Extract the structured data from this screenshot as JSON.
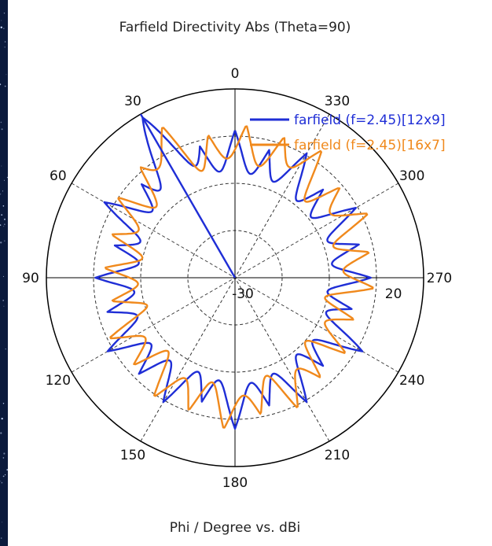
{
  "chart_data": {
    "type": "polar",
    "title": "Farfield Directivity Abs (Theta=90)",
    "xlabel": "Phi / Degree vs. dBi",
    "angle_ticks": [
      "0",
      "30",
      "60",
      "90",
      "120",
      "150",
      "180",
      "210",
      "240",
      "270",
      "300",
      "330"
    ],
    "radial_ticks": [
      "-30",
      "20"
    ],
    "rlim": [
      -30,
      20
    ],
    "angle_direction": "counterclockwise",
    "grid": true,
    "legend_position": "top-right",
    "main_lobe_direction_deg": 30,
    "series": [
      {
        "name": "farfield (f=2.45)[12x9]",
        "color": "#1f2ed6",
        "phi": [
          0,
          15,
          30,
          45,
          60,
          75,
          90,
          105,
          120,
          135,
          150,
          165,
          180,
          195,
          210,
          225,
          240,
          255,
          270,
          285,
          300,
          315,
          330,
          345
        ],
        "dbi": [
          9,
          6,
          19,
          5,
          10,
          3,
          7,
          5,
          9,
          6,
          8,
          4,
          10,
          5,
          8,
          3,
          9,
          2,
          6,
          4,
          7,
          3,
          8,
          5
        ]
      },
      {
        "name": "farfield (f=2.45)[16x7]",
        "color": "#f0891c",
        "phi": [
          0,
          15,
          30,
          45,
          60,
          75,
          90,
          105,
          120,
          135,
          150,
          165,
          180,
          195,
          210,
          225,
          240,
          255,
          270,
          285,
          300,
          315,
          330,
          345
        ],
        "dbi": [
          11,
          8,
          16,
          7,
          8,
          4,
          5,
          3,
          8,
          5,
          9,
          7,
          11,
          6,
          9,
          4,
          6,
          3,
          8,
          6,
          10,
          6,
          12,
          9
        ]
      }
    ]
  },
  "colors": {
    "background": "#0b1a3c",
    "plot_background": "#ffffff"
  }
}
